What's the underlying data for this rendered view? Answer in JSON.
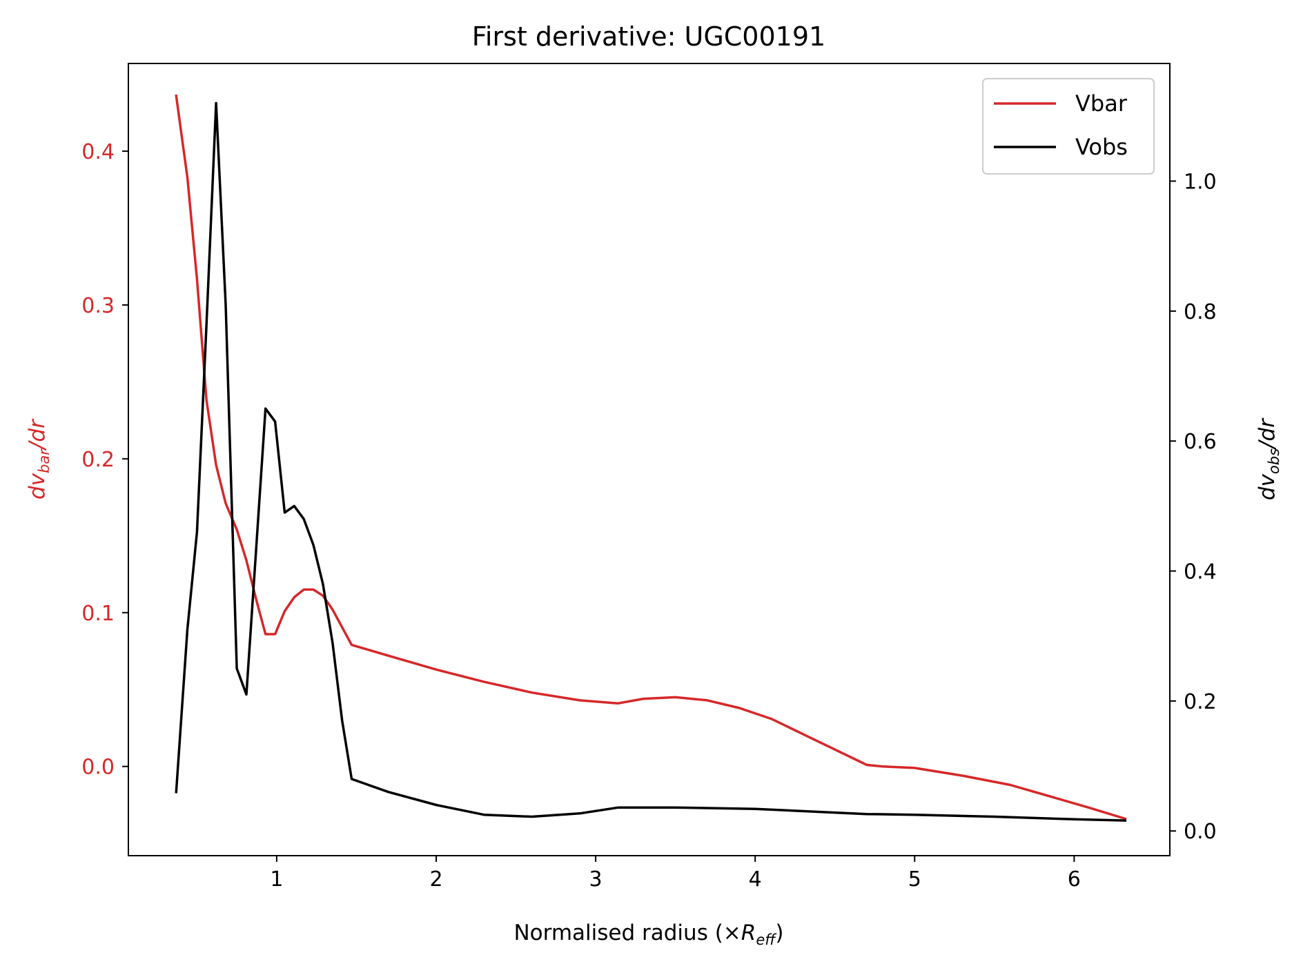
{
  "chart_data": {
    "type": "line",
    "title": "First derivative: UGC00191",
    "xlabel_main": "Normalised radius (×",
    "xlabel_sub_symbol": "R",
    "xlabel_subscript": "eff",
    "xlabel_close": ")",
    "ylabel_left": {
      "prefix": "dv",
      "subscript": "bar",
      "suffix": "/dr",
      "color": "#d62728"
    },
    "ylabel_right": {
      "prefix": "dv",
      "subscript": "obs",
      "suffix": "/dr",
      "color": "#000000"
    },
    "xlim": [
      0.07,
      6.6
    ],
    "ylim_left": [
      -0.058,
      0.457
    ],
    "ylim_right": [
      -0.038,
      1.181
    ],
    "xticks": [
      1,
      2,
      3,
      4,
      5,
      6
    ],
    "xtick_labels": [
      "1",
      "2",
      "3",
      "4",
      "5",
      "6"
    ],
    "yticks_left": [
      0.0,
      0.1,
      0.2,
      0.3,
      0.4
    ],
    "ytick_labels_left": [
      "0.0",
      "0.1",
      "0.2",
      "0.3",
      "0.4"
    ],
    "yticks_right": [
      0.0,
      0.2,
      0.4,
      0.6,
      0.8,
      1.0
    ],
    "ytick_labels_right": [
      "0.0",
      "0.2",
      "0.4",
      "0.6",
      "0.8",
      "1.0"
    ],
    "legend_position": "top-right",
    "grid": false,
    "series": [
      {
        "name": "Vbar",
        "axis": "left",
        "color": "#d62728",
        "x": [
          0.37,
          0.44,
          0.5,
          0.56,
          0.62,
          0.68,
          0.75,
          0.81,
          0.87,
          0.93,
          0.99,
          1.05,
          1.11,
          1.17,
          1.23,
          1.29,
          1.35,
          1.47,
          1.7,
          2.0,
          2.3,
          2.6,
          2.9,
          3.14,
          3.3,
          3.5,
          3.7,
          3.9,
          4.1,
          4.3,
          4.5,
          4.7,
          4.8,
          5.0,
          5.3,
          5.6,
          5.9,
          6.1,
          6.32
        ],
        "y": [
          0.436,
          0.383,
          0.317,
          0.238,
          0.196,
          0.171,
          0.154,
          0.134,
          0.109,
          0.086,
          0.086,
          0.101,
          0.11,
          0.115,
          0.115,
          0.111,
          0.102,
          0.079,
          0.072,
          0.063,
          0.055,
          0.048,
          0.043,
          0.041,
          0.044,
          0.045,
          0.043,
          0.038,
          0.031,
          0.021,
          0.011,
          0.001,
          0.0,
          -0.001,
          -0.006,
          -0.012,
          -0.021,
          -0.027,
          -0.034
        ]
      },
      {
        "name": "Vobs",
        "axis": "right",
        "color": "#000000",
        "x": [
          0.37,
          0.44,
          0.5,
          0.56,
          0.62,
          0.68,
          0.75,
          0.81,
          0.87,
          0.93,
          0.99,
          1.05,
          1.11,
          1.17,
          1.23,
          1.29,
          1.35,
          1.41,
          1.47,
          1.7,
          2.0,
          2.3,
          2.6,
          2.9,
          3.14,
          3.5,
          4.0,
          4.7,
          5.0,
          5.5,
          6.0,
          6.32
        ],
        "y": [
          0.06,
          0.31,
          0.46,
          0.78,
          1.12,
          0.81,
          0.25,
          0.21,
          0.43,
          0.65,
          0.63,
          0.49,
          0.5,
          0.48,
          0.44,
          0.38,
          0.29,
          0.17,
          0.08,
          0.06,
          0.04,
          0.025,
          0.022,
          0.027,
          0.036,
          0.036,
          0.034,
          0.026,
          0.025,
          0.022,
          0.018,
          0.016
        ]
      }
    ]
  }
}
